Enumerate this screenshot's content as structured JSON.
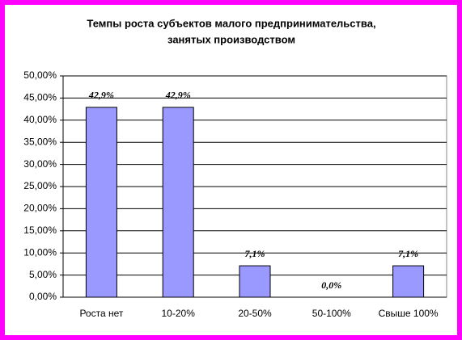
{
  "chart_data": {
    "type": "bar",
    "title": [
      "Темпы роста субъектов малого предпринимательства,",
      "занятых производством"
    ],
    "categories": [
      "Роста нет",
      "10-20%",
      "20-50%",
      "50-100%",
      "Свыше 100%"
    ],
    "values": [
      42.9,
      42.9,
      7.1,
      0,
      7.1
    ],
    "value_labels": [
      "42,9%",
      "42,9%",
      "7,1%",
      "0,0%",
      "7,1%"
    ],
    "color": "#9999ff",
    "ylim": [
      0,
      50
    ],
    "yticks": [
      {
        "value": 0,
        "label": "0,00%"
      },
      {
        "value": 5,
        "label": "5,00%"
      },
      {
        "value": 10,
        "label": "10,00%"
      },
      {
        "value": 15,
        "label": "15,00%"
      },
      {
        "value": 20,
        "label": "20,00%"
      },
      {
        "value": 25,
        "label": "25,00%"
      },
      {
        "value": 30,
        "label": "30,00%"
      },
      {
        "value": 35,
        "label": "35,00%"
      },
      {
        "value": 40,
        "label": "40,00%"
      },
      {
        "value": 45,
        "label": "45,00%"
      },
      {
        "value": 50,
        "label": "50,00%"
      }
    ],
    "grid": true
  }
}
